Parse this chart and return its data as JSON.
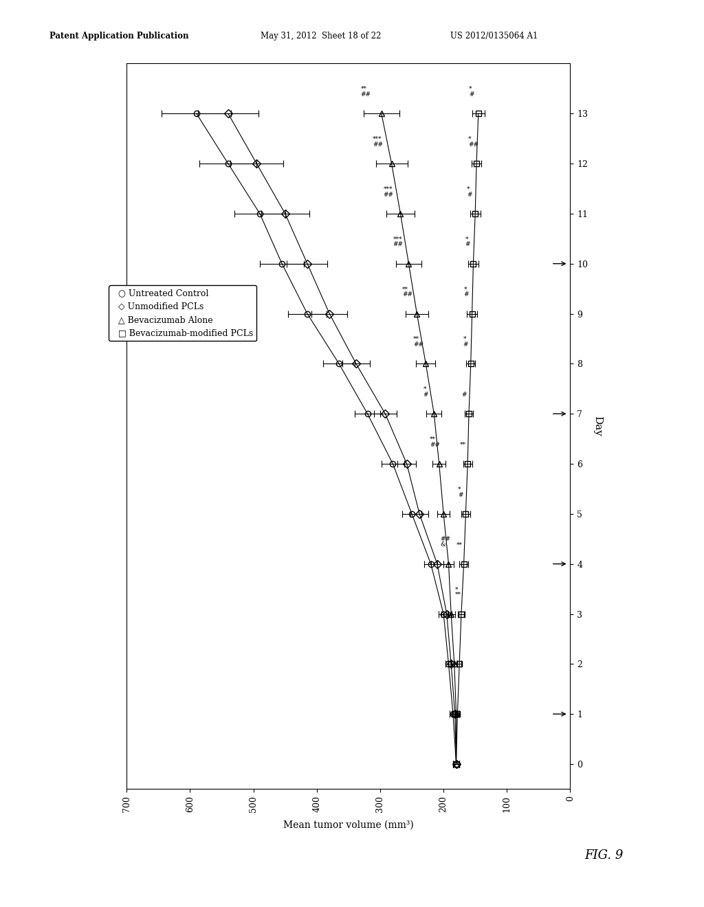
{
  "patent_line1": "Patent Application Publication",
  "patent_line2": "May 31, 2012  Sheet 18 of 22",
  "patent_line3": "US 2012/0135064 A1",
  "fig_label": "FIG. 9",
  "xlabel": "Mean tumor volume (mm³)",
  "ylabel": "Day",
  "xlim_left": 700,
  "xlim_right": 0,
  "ylim": [
    -0.5,
    14
  ],
  "yticks": [
    0,
    1,
    2,
    3,
    4,
    5,
    6,
    7,
    8,
    9,
    10,
    11,
    12,
    13
  ],
  "xticks": [
    0,
    100,
    200,
    300,
    400,
    500,
    600,
    700
  ],
  "arrow_days": [
    1,
    4,
    7,
    10
  ],
  "series": [
    {
      "key": "untreated",
      "label": "○ Untreated Control",
      "marker": "o",
      "days": [
        0,
        1,
        2,
        3,
        4,
        5,
        6,
        7,
        8,
        9,
        10,
        11,
        12,
        13
      ],
      "means": [
        180,
        185,
        192,
        200,
        220,
        250,
        280,
        320,
        365,
        415,
        455,
        490,
        540,
        590
      ],
      "errs": [
        5,
        5,
        5,
        8,
        10,
        15,
        18,
        20,
        25,
        30,
        35,
        40,
        45,
        55
      ]
    },
    {
      "key": "unmodified",
      "label": "◇ Unmodified PCLs",
      "marker": "D",
      "days": [
        0,
        1,
        2,
        3,
        4,
        5,
        6,
        7,
        8,
        9,
        10,
        11,
        12,
        13
      ],
      "means": [
        180,
        182,
        188,
        195,
        210,
        238,
        258,
        292,
        338,
        380,
        415,
        450,
        495,
        540
      ],
      "errs": [
        5,
        5,
        5,
        8,
        10,
        14,
        15,
        18,
        22,
        28,
        32,
        38,
        42,
        48
      ]
    },
    {
      "key": "bevacizumab_alone",
      "label": "△ Bevacizumab Alone",
      "marker": "^",
      "days": [
        0,
        1,
        2,
        3,
        4,
        5,
        6,
        7,
        8,
        9,
        10,
        11,
        12,
        13
      ],
      "means": [
        180,
        180,
        183,
        188,
        192,
        200,
        207,
        215,
        228,
        242,
        255,
        268,
        282,
        298
      ],
      "errs": [
        5,
        5,
        5,
        6,
        8,
        10,
        10,
        12,
        15,
        18,
        20,
        22,
        25,
        28
      ]
    },
    {
      "key": "bevacizumab_modified",
      "label": "□ Bevacizumab-modified PCLs",
      "marker": "s",
      "days": [
        0,
        1,
        2,
        3,
        4,
        5,
        6,
        7,
        8,
        9,
        10,
        11,
        12,
        13
      ],
      "means": [
        180,
        178,
        175,
        172,
        168,
        165,
        162,
        160,
        157,
        155,
        153,
        150,
        148,
        145
      ],
      "errs": [
        5,
        3,
        3,
        5,
        7,
        7,
        7,
        7,
        7,
        8,
        8,
        8,
        8,
        10
      ]
    }
  ],
  "sig_bev_mod": {
    "3": "*\n**",
    "4": "**",
    "5": "*\n#",
    "6": "**",
    "7": "#",
    "8": "*\n#",
    "9": "*\n#",
    "10": "*\n#",
    "11": "*\n#",
    "12": "*\n##",
    "13": "*\n#"
  },
  "sig_bev_alone": {
    "4": "##\n&",
    "6": "**\n##",
    "7": "*\n#",
    "8": "**\n##",
    "9": "**\n##",
    "10": "***\n##",
    "11": "***\n##",
    "12": "***\n##",
    "13": "**\n##"
  }
}
